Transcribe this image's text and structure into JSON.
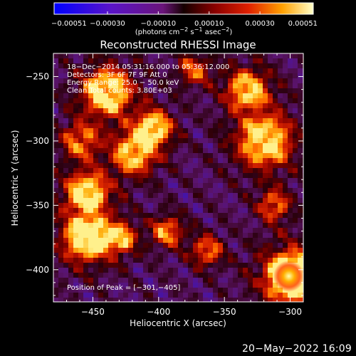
{
  "chart_data": {
    "type": "heatmap",
    "title": "Reconstructed RHESSI Image",
    "xlabel": "Heliocentric X (arcsec)",
    "ylabel": "Heliocentric Y (arcsec)",
    "xlim": [
      -480,
      -290
    ],
    "ylim": [
      -425,
      -232
    ],
    "x_ticks": [
      -450,
      -400,
      -350,
      -300
    ],
    "y_ticks": [
      -400,
      -350,
      -300,
      -250
    ],
    "x_tick_labels": [
      "−450",
      "−400",
      "−350",
      "−300"
    ],
    "y_tick_labels": [
      "−400",
      "−350",
      "−300",
      "−250"
    ],
    "annotations": {
      "line1": "18−Dec−2014 05:31:16.000 to 05:36:12.000",
      "line2": "Detectors: 3F 6F 7F 9F  Att 0",
      "line3": "Energy Range: 25.0 − 50.0 keV",
      "line4": "Clean     Total counts: 3.80E+03",
      "peak": "Position of Peak = [−301,−405]"
    },
    "colorbar": {
      "range": [
        -0.00051,
        0.00051
      ],
      "tick_labels": [
        "−0.00051",
        "−0.00030",
        "−0.00010",
        "0.00010",
        "0.00030",
        "0.00051"
      ],
      "units_prefix": "(photons cm",
      "units_exp1": "−2",
      "units_mid": " s",
      "units_exp2": "−1",
      "units_mid2": " asec",
      "units_exp3": "−2",
      "units_suffix": ")"
    },
    "peak_position": [
      -301,
      -405
    ],
    "grid": false
  },
  "timestamp": "20−May−2022 16:09"
}
